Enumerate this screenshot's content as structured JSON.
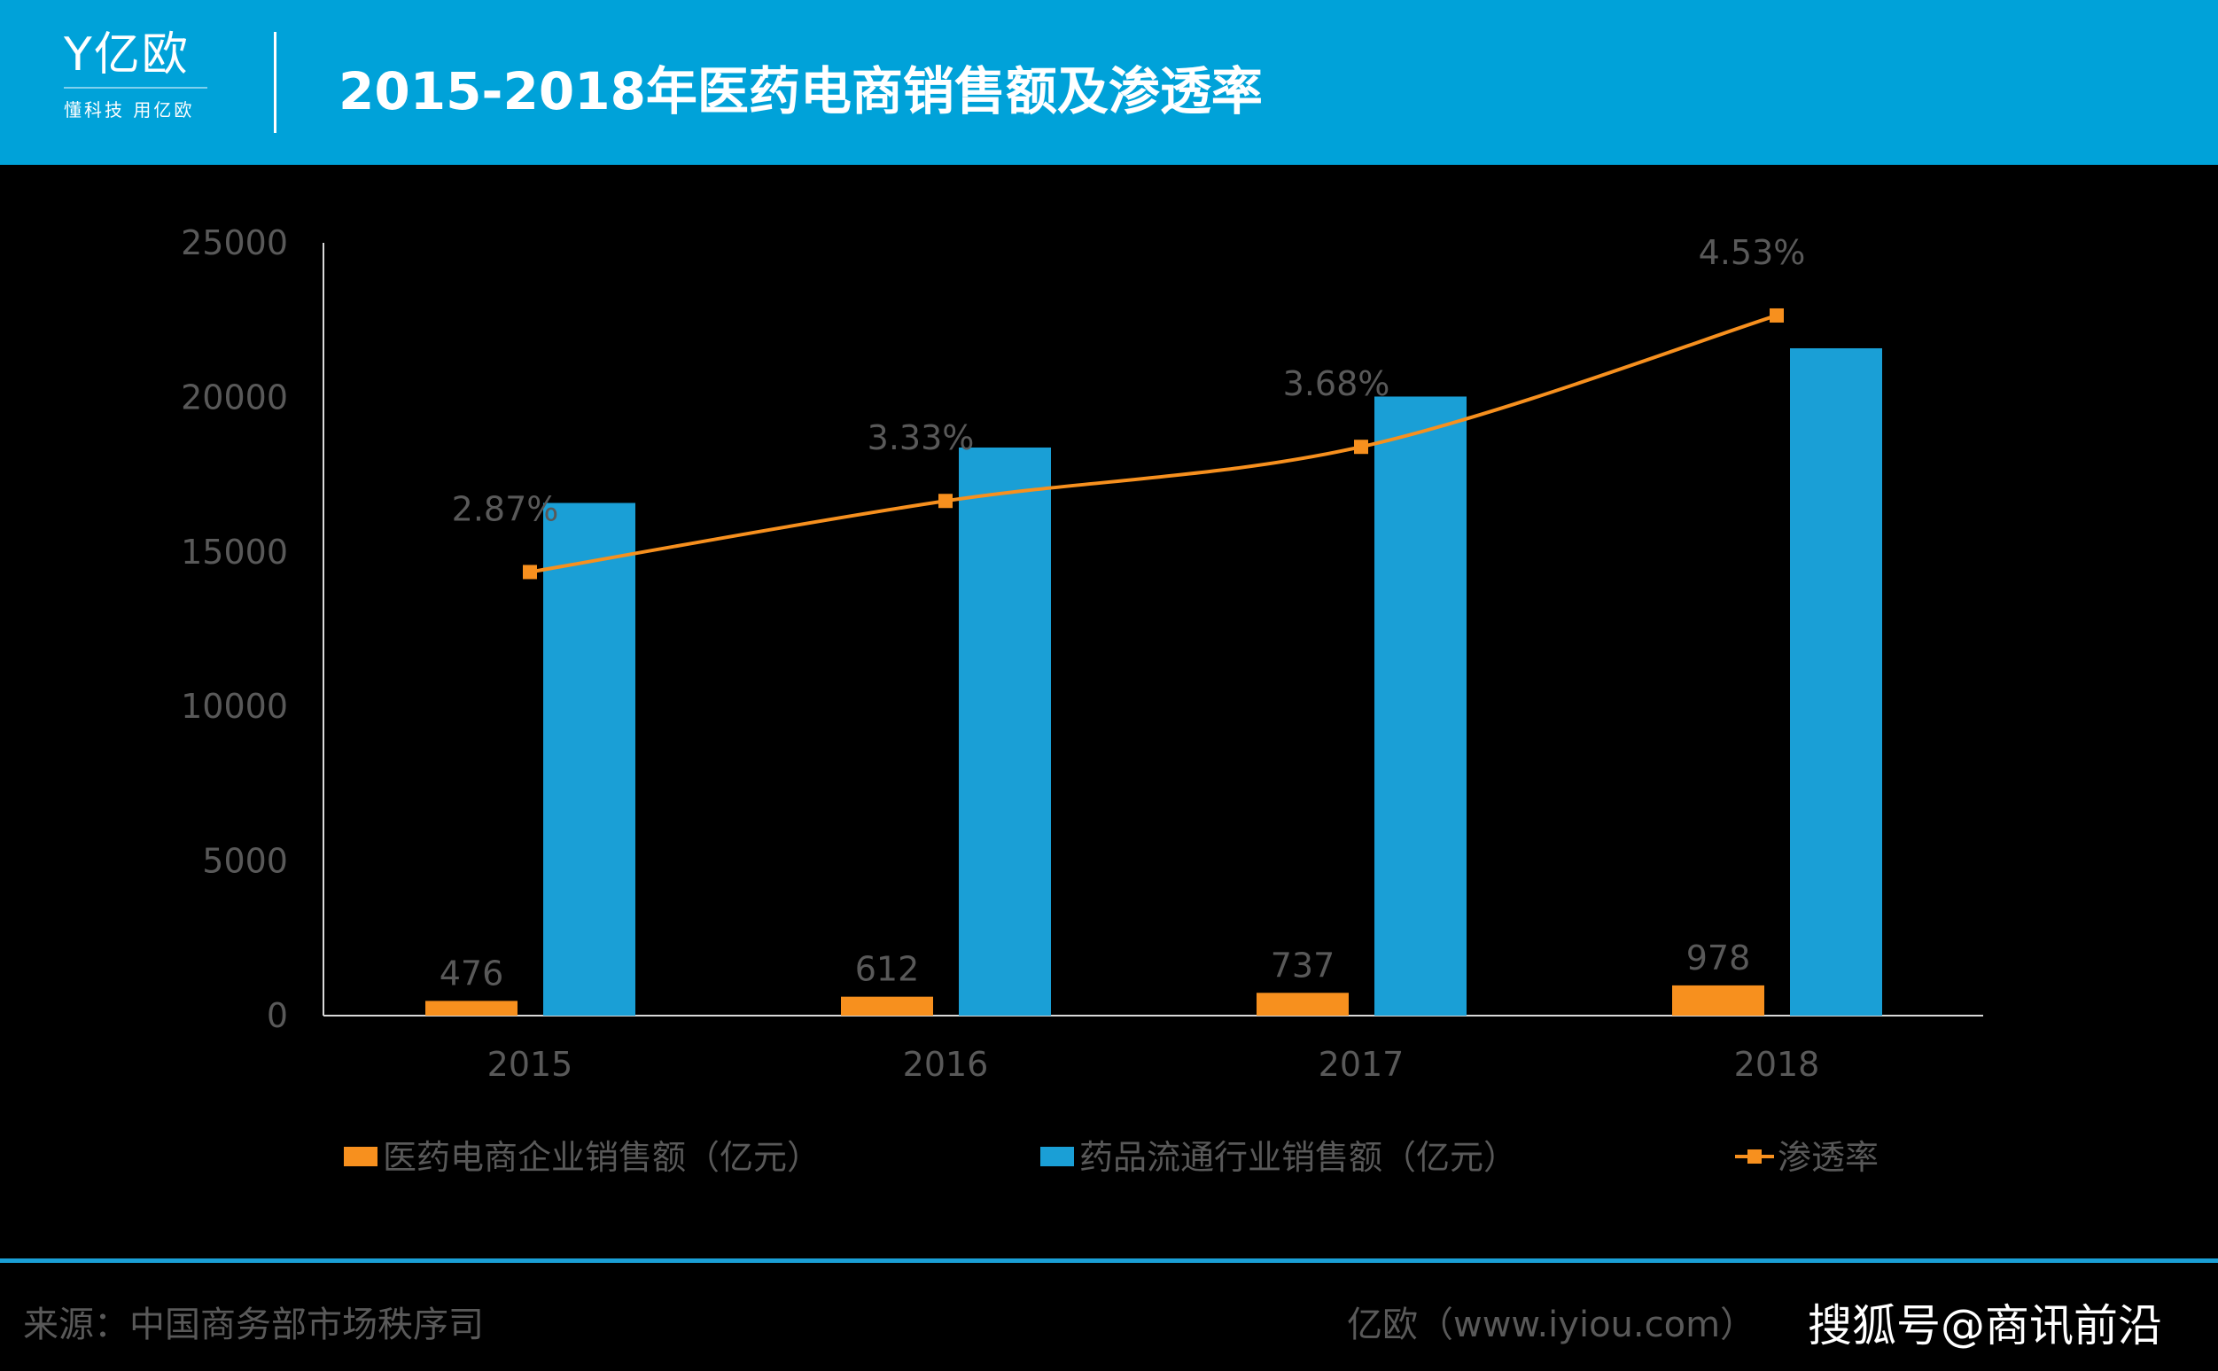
{
  "header": {
    "logo_text": "亿欧",
    "slogan": "懂科技 用亿欧",
    "title": "2015-2018年医药电商销售额及渗透率"
  },
  "footer": {
    "source": "来源：中国商务部市场秩序司",
    "site_watermark": "亿欧（www.iyiou.com）",
    "platform_watermark": "搜狐号@商讯前沿"
  },
  "colors": {
    "header": "#00a2d9",
    "orange": "#f7901e",
    "blue": "#1a9fd6"
  },
  "chart_data": {
    "type": "bar+line",
    "categories": [
      "2015",
      "2016",
      "2017",
      "2018"
    ],
    "ylim": [
      0,
      25000
    ],
    "yticks": [
      "0",
      "5000",
      "10000",
      "15000",
      "20000",
      "25000"
    ],
    "y2lim": [
      0,
      5
    ],
    "grid": false,
    "legend_position": "bottom",
    "series": [
      {
        "name": "医药电商企业销售额（亿元）",
        "type": "bar",
        "color": "#f7901e",
        "values": [
          476,
          612,
          737,
          978
        ],
        "labels": [
          "476",
          "612",
          "737",
          "978"
        ]
      },
      {
        "name": "药品流通行业销售额（亿元）",
        "type": "bar",
        "color": "#1a9fd6",
        "values": [
          16585,
          18378,
          20027,
          21589
        ]
      },
      {
        "name": "渗透率",
        "type": "line",
        "axis": "secondary",
        "color": "#f7901e",
        "values": [
          2.87,
          3.33,
          3.68,
          4.53
        ],
        "labels": [
          "2.87%",
          "3.33%",
          "3.68%",
          "4.53%"
        ]
      }
    ]
  }
}
